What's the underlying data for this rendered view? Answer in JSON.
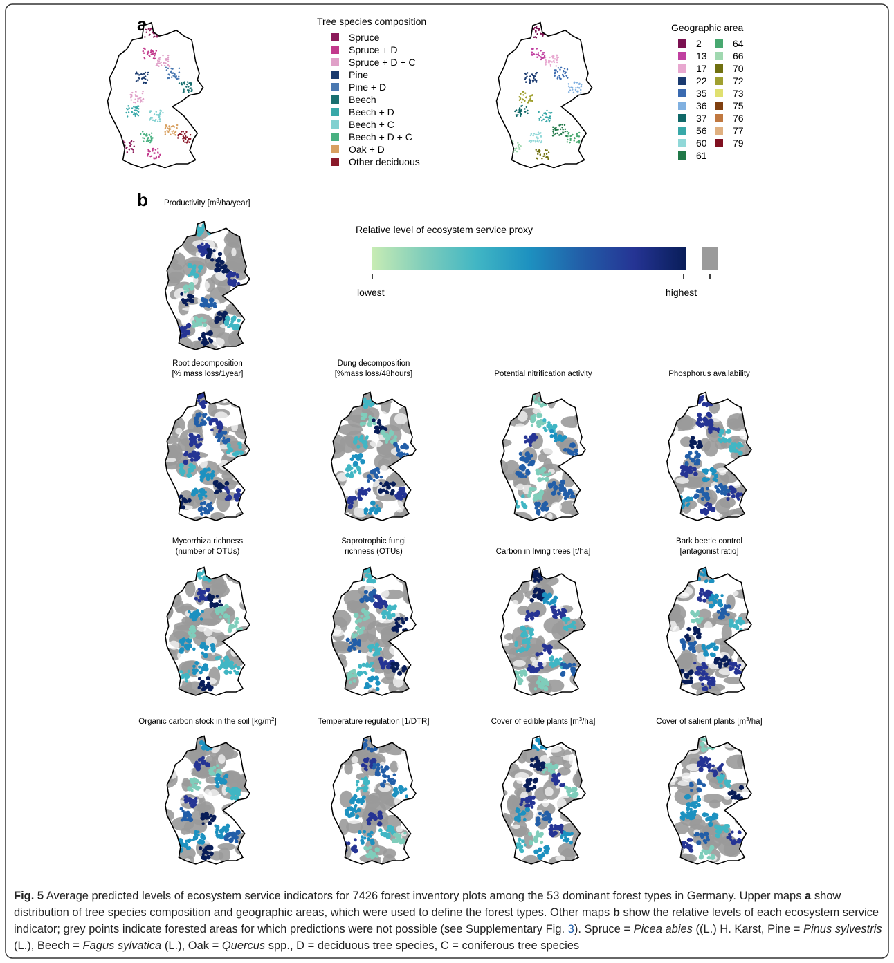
{
  "panel_a": {
    "label": "a",
    "species_legend": {
      "title": "Tree species composition",
      "items": [
        {
          "name": "Spruce",
          "color": "#8b1a5a"
        },
        {
          "name": "Spruce + D",
          "color": "#c2398c"
        },
        {
          "name": "Spruce + D + C",
          "color": "#e0a0c8"
        },
        {
          "name": "Pine",
          "color": "#1a3a6e"
        },
        {
          "name": "Pine + D",
          "color": "#4a78b0"
        },
        {
          "name": "Beech",
          "color": "#1a7070"
        },
        {
          "name": "Beech + D",
          "color": "#38a8a8"
        },
        {
          "name": "Beech + C",
          "color": "#80d0d0"
        },
        {
          "name": "Beech + D + C",
          "color": "#48b080"
        },
        {
          "name": "Oak + D",
          "color": "#d8a060"
        },
        {
          "name": "Other deciduous",
          "color": "#8a1a2a"
        }
      ]
    },
    "area_legend": {
      "title": "Geographic area",
      "items": [
        {
          "name": "2",
          "color": "#7a1050"
        },
        {
          "name": "13",
          "color": "#c040a0"
        },
        {
          "name": "17",
          "color": "#e8a8d0"
        },
        {
          "name": "22",
          "color": "#1a3a70"
        },
        {
          "name": "35",
          "color": "#3a6ab0"
        },
        {
          "name": "36",
          "color": "#80b0e0"
        },
        {
          "name": "37",
          "color": "#106868"
        },
        {
          "name": "56",
          "color": "#38a8a8"
        },
        {
          "name": "60",
          "color": "#90d8d8"
        },
        {
          "name": "61",
          "color": "#207848"
        },
        {
          "name": "64",
          "color": "#48a870"
        },
        {
          "name": "66",
          "color": "#a0d8b0"
        },
        {
          "name": "70",
          "color": "#707010"
        },
        {
          "name": "72",
          "color": "#a0a030"
        },
        {
          "name": "73",
          "color": "#e0e070"
        },
        {
          "name": "75",
          "color": "#804010"
        },
        {
          "name": "76",
          "color": "#c07840"
        },
        {
          "name": "77",
          "color": "#e0b080"
        },
        {
          "name": "79",
          "color": "#801020"
        }
      ]
    }
  },
  "panel_b": {
    "label": "b",
    "colorbar": {
      "title": "Relative level of ecosystem service proxy",
      "low": "lowest",
      "high": "highest",
      "colors": [
        "#c8ecb4",
        "#7fcdbb",
        "#41b6c4",
        "#1d91c0",
        "#225ea8",
        "#253494",
        "#081d58"
      ],
      "na_color": "#9a9a9a"
    },
    "maps": [
      {
        "title": [
          [
            {
              "text": "Productivity [m"
            },
            {
              "text": "3",
              "sup": true
            },
            {
              "text": "/ha/year]"
            }
          ]
        ]
      },
      {
        "title": [
          [
            {
              "text": "Root decomposition"
            }
          ],
          [
            {
              "text": "[% mass loss/1year]"
            }
          ]
        ]
      },
      {
        "title": [
          [
            {
              "text": "Dung decomposition"
            }
          ],
          [
            {
              "text": "[%mass loss/48hours]"
            }
          ]
        ]
      },
      {
        "title": [
          [
            {
              "text": "Potential nitrification activity"
            }
          ]
        ]
      },
      {
        "title": [
          [
            {
              "text": "Phosphorus availability"
            }
          ]
        ]
      },
      {
        "title": [
          [
            {
              "text": "Mycorrhiza richness"
            }
          ],
          [
            {
              "text": "(number of OTUs)"
            }
          ]
        ]
      },
      {
        "title": [
          [
            {
              "text": "Saprotrophic fungi"
            }
          ],
          [
            {
              "text": "richness (OTUs)"
            }
          ]
        ]
      },
      {
        "title": [
          [
            {
              "text": "Carbon in living trees [t/ha]"
            }
          ]
        ]
      },
      {
        "title": [
          [
            {
              "text": "Bark beetle control"
            }
          ],
          [
            {
              "text": "[antagonist ratio]"
            }
          ]
        ]
      },
      {
        "title": [
          [
            {
              "text": "Organic carbon stock in the soil [kg/m"
            },
            {
              "text": "2",
              "sup": true
            },
            {
              "text": "]"
            }
          ]
        ]
      },
      {
        "title": [
          [
            {
              "text": "Temperature regulation [1/DTR]"
            }
          ]
        ]
      },
      {
        "title": [
          [
            {
              "text": "Cover of edible plants [m"
            },
            {
              "text": "3",
              "sup": true
            },
            {
              "text": "/ha]"
            }
          ]
        ]
      },
      {
        "title": [
          [
            {
              "text": "Cover of salient plants [m"
            },
            {
              "text": "3",
              "sup": true
            },
            {
              "text": "/ha]"
            }
          ]
        ]
      }
    ]
  },
  "caption": [
    {
      "text": "Fig. 5",
      "style": "bold"
    },
    {
      "text": " Average predicted levels of ecosystem service indicators for 7426 forest inventory plots among the 53 dominant forest types in Germany. Upper maps "
    },
    {
      "text": "a",
      "style": "bold"
    },
    {
      "text": " show distribution of tree species composition and geographic areas, which were used to define the forest types. Other maps "
    },
    {
      "text": "b",
      "style": "bold"
    },
    {
      "text": " show the relative levels of each ecosystem service indicator; grey points indicate forested areas for which predictions were not possible (see Supplementary Fig. "
    },
    {
      "text": "3",
      "style": "link"
    },
    {
      "text": "). Spruce = "
    },
    {
      "text": "Picea abies",
      "style": "italic"
    },
    {
      "text": " ((L.) H. Karst, Pine = "
    },
    {
      "text": "Pinus sylvestris",
      "style": "italic"
    },
    {
      "text": " (L.), Beech = "
    },
    {
      "text": "Fagus sylvatica",
      "style": "italic"
    },
    {
      "text": " (L.), Oak = "
    },
    {
      "text": "Quercus",
      "style": "italic"
    },
    {
      "text": " spp., D = deciduous tree species, C = coniferous tree species"
    }
  ]
}
